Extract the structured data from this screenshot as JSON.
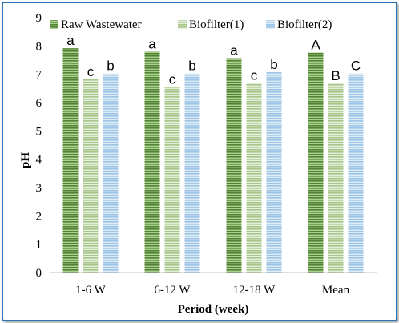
{
  "chart_data": {
    "type": "bar",
    "title": "",
    "xlabel": "Period (week)",
    "ylabel": "pH",
    "ylim": [
      0,
      9
    ],
    "yticks": [
      "0",
      "1",
      "2",
      "3",
      "4",
      "5",
      "6",
      "7",
      "8",
      "9"
    ],
    "categories": [
      "1-6 W",
      "6-12 W",
      "12-18 W",
      "Mean"
    ],
    "series": [
      {
        "name": "Raw Wastewater",
        "values": [
          7.92,
          7.8,
          7.57,
          7.77
        ],
        "color": "#548235",
        "stripe": "#a9d08e",
        "letters": [
          "a",
          "a",
          "a",
          "A"
        ]
      },
      {
        "name": "Biofilter(1)",
        "values": [
          6.82,
          6.55,
          6.7,
          6.68
        ],
        "color": "#a9c589",
        "stripe": "#e2efda",
        "letters": [
          "c",
          "c",
          "c",
          "B"
        ]
      },
      {
        "name": "Biofilter(2)",
        "values": [
          7.03,
          7.03,
          7.08,
          7.03
        ],
        "color": "#9dc3e6",
        "stripe": "#ddebf7",
        "letters": [
          "b",
          "b",
          "b",
          "C"
        ]
      }
    ],
    "legend": "top",
    "grid": false
  }
}
